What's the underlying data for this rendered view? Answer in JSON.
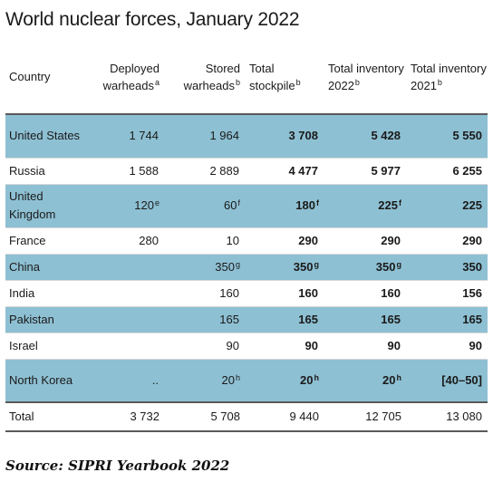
{
  "title": "World nuclear forces, January 2022",
  "headers": {
    "country": "Country",
    "deployed": "Deployed warheads",
    "deployed_sup": "a",
    "stored": "Stored warheads",
    "stored_sup": "b",
    "stockpile": "Total stockpile",
    "stockpile_sup": "b",
    "inv2022": "Total inventory 2022",
    "inv2022_sup": "b",
    "inv2021": "Total inventory 2021",
    "inv2021_sup": "b"
  },
  "rows": [
    {
      "country": "United States",
      "deployed": "1 744",
      "deployed_sup": "",
      "stored": "1 964",
      "stored_sup": "",
      "stockpile": "3 708",
      "stockpile_sup": "",
      "inv2022": "5 428",
      "inv2022_sup": "",
      "inv2021": "5 550"
    },
    {
      "country": "Russia",
      "deployed": "1 588",
      "deployed_sup": "",
      "stored": "2 889",
      "stored_sup": "",
      "stockpile": "4 477",
      "stockpile_sup": "",
      "inv2022": "5 977",
      "inv2022_sup": "",
      "inv2021": "6 255"
    },
    {
      "country": "United Kingdom",
      "deployed": "120",
      "deployed_sup": "e",
      "stored": "60",
      "stored_sup": "f",
      "stockpile": "180",
      "stockpile_sup": "f",
      "inv2022": "225",
      "inv2022_sup": "f",
      "inv2021": "225"
    },
    {
      "country": "France",
      "deployed": "280",
      "deployed_sup": "",
      "stored": "10",
      "stored_sup": "",
      "stockpile": "290",
      "stockpile_sup": "",
      "inv2022": "290",
      "inv2022_sup": "",
      "inv2021": "290"
    },
    {
      "country": "China",
      "deployed": "",
      "deployed_sup": "",
      "stored": "350",
      "stored_sup": "g",
      "stockpile": "350",
      "stockpile_sup": "g",
      "inv2022": "350",
      "inv2022_sup": "g",
      "inv2021": "350"
    },
    {
      "country": "India",
      "deployed": "",
      "deployed_sup": "",
      "stored": "160",
      "stored_sup": "",
      "stockpile": "160",
      "stockpile_sup": "",
      "inv2022": "160",
      "inv2022_sup": "",
      "inv2021": "156"
    },
    {
      "country": "Pakistan",
      "deployed": "",
      "deployed_sup": "",
      "stored": "165",
      "stored_sup": "",
      "stockpile": "165",
      "stockpile_sup": "",
      "inv2022": "165",
      "inv2022_sup": "",
      "inv2021": "165"
    },
    {
      "country": "Israel",
      "deployed": "",
      "deployed_sup": "",
      "stored": "90",
      "stored_sup": "",
      "stockpile": "90",
      "stockpile_sup": "",
      "inv2022": "90",
      "inv2022_sup": "",
      "inv2021": "90"
    },
    {
      "country": "North Korea",
      "deployed": "..",
      "deployed_sup": "",
      "stored": "20",
      "stored_sup": "h",
      "stockpile": "20",
      "stockpile_sup": "h",
      "inv2022": "20",
      "inv2022_sup": "h",
      "inv2021": "[40–50]"
    }
  ],
  "total": {
    "label": "Total",
    "deployed": "3 732",
    "stored": "5 708",
    "stockpile": "9 440",
    "inv2022": "12 705",
    "inv2021": "13 080"
  },
  "source": "Source: SIPRI Yearbook 2022",
  "colors": {
    "row_shade": "#8ec0d3"
  }
}
